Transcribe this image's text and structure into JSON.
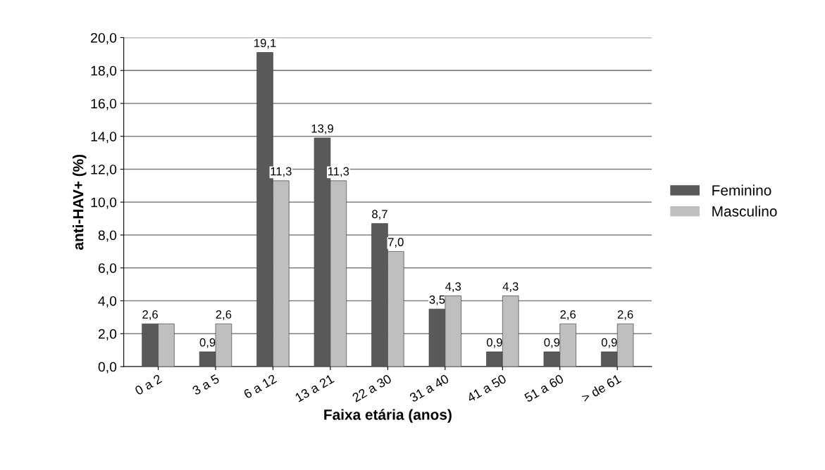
{
  "chart_data": {
    "type": "bar",
    "xlabel": "Faixa etária (anos)",
    "ylabel": "anti-HAV+ (%)",
    "categories": [
      "0 a 2",
      "3 a 5",
      "6 a 12",
      "13 a 21",
      "22 a 30",
      "31 a 40",
      "41 a 50",
      "51 a 60",
      "> de 61"
    ],
    "series": [
      {
        "name": "Feminino",
        "color": "#595959",
        "values": [
          2.6,
          0.9,
          19.1,
          13.9,
          8.7,
          3.5,
          0.9,
          0.9,
          0.9
        ],
        "value_labels": [
          "2,6",
          "0,9",
          "19,1",
          "13,9",
          "8,7",
          "3,5",
          "0,9",
          "0,9",
          "0,9"
        ]
      },
      {
        "name": "Masculino",
        "color": "#bfbfbf",
        "values": [
          2.6,
          2.6,
          11.3,
          11.3,
          7.0,
          4.3,
          4.3,
          2.6,
          2.6
        ],
        "value_labels": [
          null,
          "2,6",
          "11,3",
          "11,3",
          "7,0",
          "4,3",
          "4,3",
          "2,6",
          "2,6"
        ]
      }
    ],
    "ylim": [
      0,
      20
    ],
    "yticks": [
      {
        "value": 0,
        "label": "0,0"
      },
      {
        "value": 2,
        "label": "2,0"
      },
      {
        "value": 4,
        "label": "4,0"
      },
      {
        "value": 6,
        "label": "6,0"
      },
      {
        "value": 8,
        "label": "8,0"
      },
      {
        "value": 10,
        "label": "10,0"
      },
      {
        "value": 12,
        "label": "12,0"
      },
      {
        "value": 14,
        "label": "14,0"
      },
      {
        "value": 16,
        "label": "16,0"
      },
      {
        "value": 18,
        "label": "18,0"
      },
      {
        "value": 20,
        "label": "20,0"
      }
    ],
    "grid": "y",
    "legend": "right"
  }
}
